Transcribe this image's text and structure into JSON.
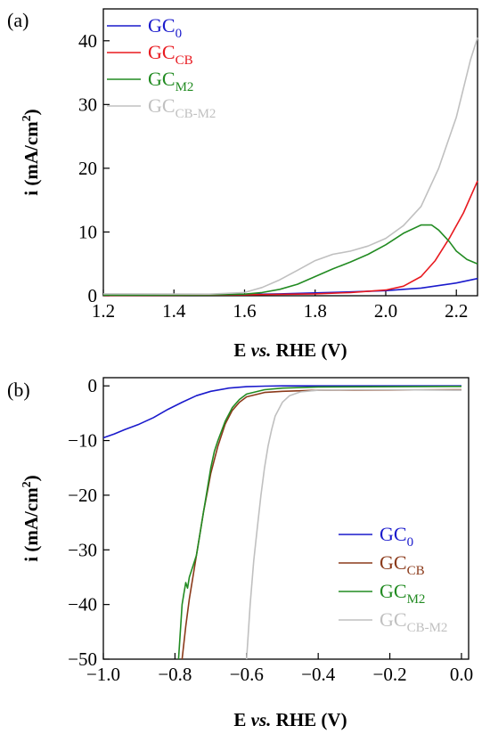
{
  "chart_data": [
    {
      "panel_label": "(a)",
      "type": "line",
      "xlabel_main": "E ",
      "xlabel_ital": "vs.",
      "xlabel_tail": " RHE (V)",
      "ylabel_main": "i (mA/cm",
      "ylabel_sup": "2",
      "ylabel_tail": ")",
      "xlim": [
        1.2,
        2.26
      ],
      "ylim": [
        0,
        45
      ],
      "xticks": [
        "1.2",
        "1.4",
        "1.6",
        "1.8",
        "2.0",
        "2.2"
      ],
      "xtick_values": [
        1.2,
        1.4,
        1.6,
        1.8,
        2.0,
        2.2
      ],
      "yticks": [
        "0",
        "10",
        "20",
        "30",
        "40"
      ],
      "ytick_values": [
        0,
        10,
        20,
        30,
        40
      ],
      "legend_position": "top-left",
      "series": [
        {
          "name": "GC",
          "sub": "0",
          "color": "#1a1acc",
          "x": [
            1.2,
            1.4,
            1.6,
            1.7,
            1.8,
            1.9,
            2.0,
            2.05,
            2.1,
            2.15,
            2.2,
            2.26
          ],
          "y": [
            0.1,
            0.15,
            0.2,
            0.3,
            0.45,
            0.6,
            0.8,
            1.0,
            1.2,
            1.6,
            2.0,
            2.7
          ]
        },
        {
          "name": "GC",
          "sub": "CB",
          "color": "#e8191f",
          "x": [
            1.2,
            1.4,
            1.6,
            1.8,
            1.9,
            2.0,
            2.05,
            2.1,
            2.14,
            2.18,
            2.22,
            2.26
          ],
          "y": [
            0.05,
            0.1,
            0.15,
            0.3,
            0.5,
            0.9,
            1.5,
            3.0,
            5.5,
            9.0,
            13.0,
            18.0
          ]
        },
        {
          "name": "GC",
          "sub": "M2",
          "color": "#228b22",
          "x": [
            1.2,
            1.5,
            1.6,
            1.65,
            1.7,
            1.75,
            1.8,
            1.85,
            1.9,
            1.95,
            2.0,
            2.05,
            2.1,
            2.13,
            2.15,
            2.18,
            2.2,
            2.23,
            2.26
          ],
          "y": [
            0.1,
            0.15,
            0.25,
            0.5,
            1.0,
            1.8,
            3.0,
            4.2,
            5.3,
            6.5,
            8.0,
            9.8,
            11.1,
            11.1,
            10.3,
            8.5,
            7.0,
            5.7,
            5.0
          ]
        },
        {
          "name": "GC",
          "sub": "CB-M2",
          "color": "#c0c0c0",
          "x": [
            1.2,
            1.5,
            1.6,
            1.65,
            1.7,
            1.75,
            1.8,
            1.85,
            1.9,
            1.95,
            2.0,
            2.05,
            2.1,
            2.15,
            2.2,
            2.24,
            2.26
          ],
          "y": [
            0.3,
            0.25,
            0.5,
            1.3,
            2.5,
            4.0,
            5.5,
            6.5,
            7.0,
            7.8,
            9.0,
            11.0,
            14.0,
            20.0,
            28.0,
            37.0,
            40.5
          ]
        }
      ]
    },
    {
      "panel_label": "(b)",
      "type": "line",
      "xlabel_main": "E ",
      "xlabel_ital": "vs.",
      "xlabel_tail": " RHE (V)",
      "ylabel_main": "i (mA/cm",
      "ylabel_sup": "2",
      "ylabel_tail": ")",
      "xlim": [
        -1.0,
        0.02
      ],
      "ylim": [
        -50,
        1.5
      ],
      "xticks": [
        "−1.0",
        "−0.8",
        "−0.6",
        "−0.4",
        "−0.2",
        "0.0"
      ],
      "xtick_values": [
        -1.0,
        -0.8,
        -0.6,
        -0.4,
        -0.2,
        0.0
      ],
      "yticks": [
        "0",
        "−10",
        "−20",
        "−30",
        "−40",
        "−50"
      ],
      "ytick_values": [
        0,
        -10,
        -20,
        -30,
        -40,
        -50
      ],
      "legend_position": "bottom-right",
      "series": [
        {
          "name": "GC",
          "sub": "0",
          "color": "#1a1acc",
          "x": [
            -1.0,
            -0.97,
            -0.94,
            -0.9,
            -0.86,
            -0.82,
            -0.78,
            -0.74,
            -0.7,
            -0.65,
            -0.6,
            -0.55,
            -0.5,
            -0.3,
            0.0
          ],
          "y": [
            -9.5,
            -8.8,
            -8.0,
            -7.0,
            -5.8,
            -4.3,
            -3.0,
            -1.8,
            -1.0,
            -0.4,
            -0.15,
            -0.05,
            0.0,
            0.0,
            0.0
          ]
        },
        {
          "name": "GC",
          "sub": "CB",
          "color": "#8b3a1a",
          "x": [
            -0.78,
            -0.77,
            -0.76,
            -0.75,
            -0.74,
            -0.73,
            -0.72,
            -0.71,
            -0.7,
            -0.68,
            -0.66,
            -0.64,
            -0.62,
            -0.6,
            -0.55,
            -0.5,
            -0.4,
            0.0
          ],
          "y": [
            -50,
            -44,
            -39,
            -35,
            -31,
            -27,
            -23,
            -19.5,
            -16,
            -11,
            -7,
            -4.5,
            -3,
            -2,
            -1.2,
            -1.0,
            -0.8,
            -0.7
          ]
        },
        {
          "name": "GC",
          "sub": "M2",
          "color": "#228b22",
          "x": [
            -0.79,
            -0.785,
            -0.78,
            -0.775,
            -0.77,
            -0.765,
            -0.76,
            -0.75,
            -0.74,
            -0.73,
            -0.72,
            -0.71,
            -0.7,
            -0.69,
            -0.68,
            -0.66,
            -0.64,
            -0.62,
            -0.6,
            -0.55,
            -0.5,
            -0.4,
            0.0
          ],
          "y": [
            -50,
            -45,
            -40,
            -38,
            -36,
            -37,
            -35,
            -33,
            -31,
            -27,
            -23,
            -19,
            -15,
            -12,
            -10,
            -6.5,
            -4,
            -2.5,
            -1.5,
            -0.7,
            -0.4,
            -0.2,
            -0.1
          ]
        },
        {
          "name": "GC",
          "sub": "CB-M2",
          "color": "#c0c0c0",
          "x": [
            -0.6,
            -0.59,
            -0.58,
            -0.57,
            -0.56,
            -0.55,
            -0.54,
            -0.53,
            -0.52,
            -0.5,
            -0.48,
            -0.45,
            -0.4,
            -0.3,
            -0.2,
            0.0
          ],
          "y": [
            -50,
            -40,
            -32,
            -26,
            -20,
            -15,
            -11,
            -8,
            -5.5,
            -3,
            -1.8,
            -1.1,
            -0.8,
            -0.7,
            -0.7,
            -0.8
          ]
        }
      ]
    }
  ]
}
